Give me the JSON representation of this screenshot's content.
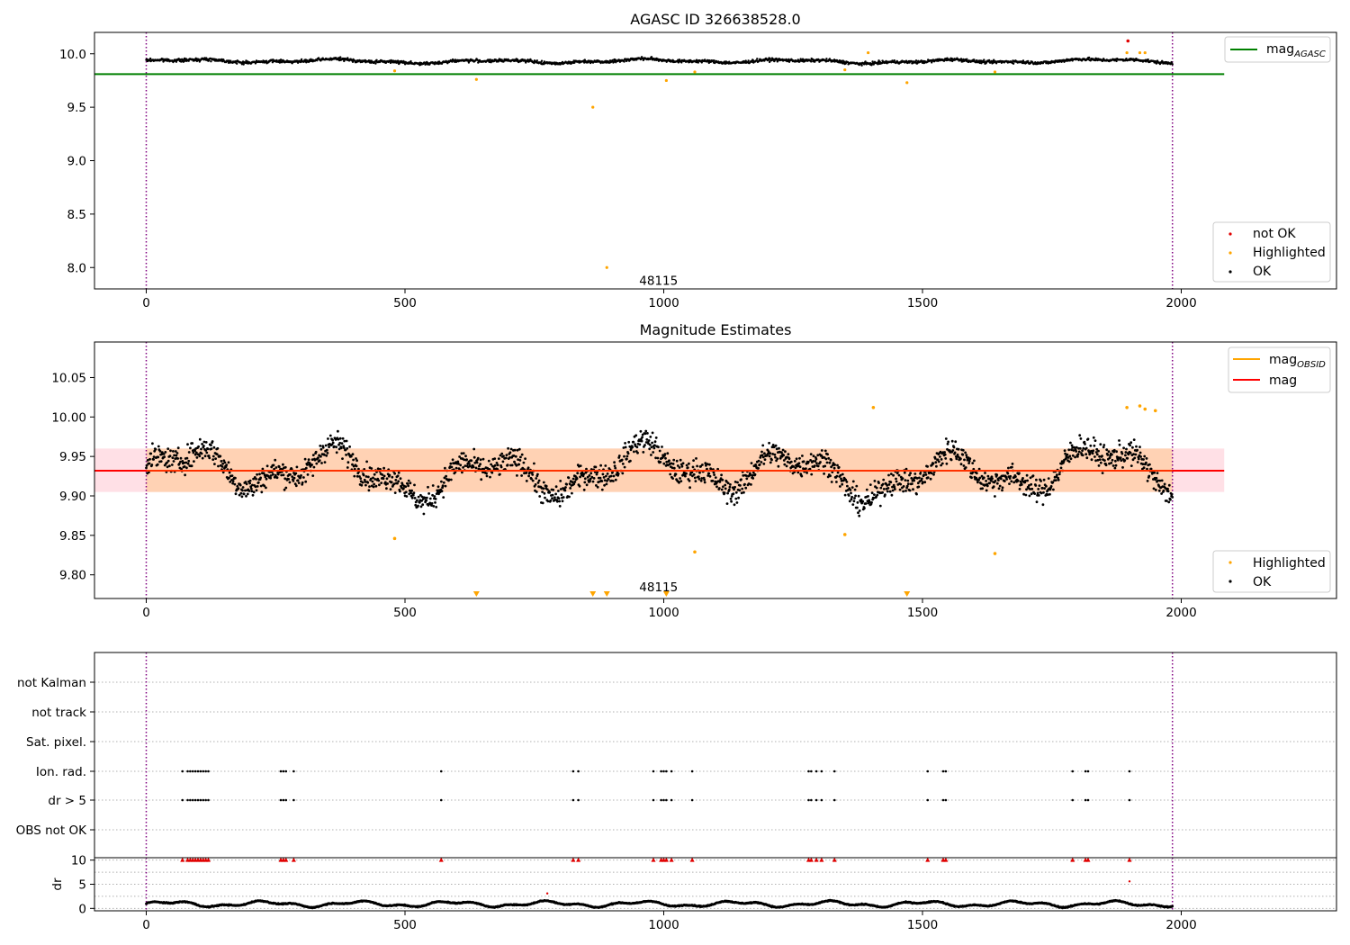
{
  "figure": {
    "colors": {
      "ok": "#000000",
      "not_ok": "#e00000",
      "highlighted": "#ffa500",
      "agasc_line": "#008000",
      "mag_line": "#ff0000",
      "obsid_line": "#ffa500",
      "band_inner": "#ffd2b4",
      "band_outer": "#ffe0e6",
      "obs_boundary": "#800080",
      "grid": "#b0b0b0"
    }
  },
  "chart_data": [
    {
      "type": "scatter",
      "title": "AGASC ID 326638528.0",
      "xlim": [
        -100,
        2300
      ],
      "ylim": [
        7.8,
        10.2
      ],
      "xticks": [
        "0",
        "500",
        "1000",
        "1500",
        "2000"
      ],
      "yticks": [
        "8.0",
        "8.5",
        "9.0",
        "9.5",
        "10.0"
      ],
      "xtick_values": [
        0,
        500,
        1000,
        1500,
        2000
      ],
      "ytick_values": [
        8.0,
        8.5,
        9.0,
        9.5,
        10.0
      ],
      "mag_agasc": 9.81,
      "mag_agasc_xrange": [
        -100,
        2083
      ],
      "obs_boundaries": [
        0,
        1983
      ],
      "obsid_label": "48115",
      "obsid_label_x": 990,
      "obsid_label_y": 7.88,
      "ok_series": {
        "name": "OK",
        "x_range": [
          0,
          1983
        ],
        "count": 1983,
        "median": 9.93
      },
      "highlighted_points": [
        {
          "x": 480,
          "y": 9.84
        },
        {
          "x": 638,
          "y": 9.76
        },
        {
          "x": 863,
          "y": 9.5
        },
        {
          "x": 890,
          "y": 8.0
        },
        {
          "x": 1005,
          "y": 9.75
        },
        {
          "x": 1060,
          "y": 9.83
        },
        {
          "x": 1350,
          "y": 9.85
        },
        {
          "x": 1395,
          "y": 10.01
        },
        {
          "x": 1470,
          "y": 9.73
        },
        {
          "x": 1640,
          "y": 9.83
        },
        {
          "x": 1895,
          "y": 10.01
        },
        {
          "x": 1920,
          "y": 10.01
        },
        {
          "x": 1930,
          "y": 10.01
        }
      ],
      "not_ok_points": [
        {
          "x": 1897,
          "y": 10.12
        }
      ],
      "legend_top": [
        {
          "label_main": "mag",
          "label_sub": "AGASC",
          "marker": "line",
          "color_key": "agasc_line"
        }
      ],
      "legend_bottom": [
        {
          "label": "not OK",
          "marker": "dot",
          "color_key": "not_ok"
        },
        {
          "label": "Highlighted",
          "marker": "dot",
          "color_key": "highlighted"
        },
        {
          "label": "OK",
          "marker": "dot",
          "color_key": "ok"
        }
      ]
    },
    {
      "type": "scatter",
      "title": "Magnitude Estimates",
      "xlim": [
        -100,
        2300
      ],
      "ylim": [
        9.77,
        10.095
      ],
      "xticks": [
        "0",
        "500",
        "1000",
        "1500",
        "2000"
      ],
      "yticks": [
        "9.80",
        "9.85",
        "9.90",
        "9.95",
        "10.00",
        "10.05"
      ],
      "xtick_values": [
        0,
        500,
        1000,
        1500,
        2000
      ],
      "ytick_values": [
        9.8,
        9.85,
        9.9,
        9.95,
        10.0,
        10.05
      ],
      "mag": 9.932,
      "mag_xrange": [
        -100,
        2083
      ],
      "band_outer": [
        9.905,
        9.96
      ],
      "band_inner": [
        9.905,
        9.96
      ],
      "band_inner_xrange": [
        0,
        1983
      ],
      "obs_boundaries": [
        0,
        1983
      ],
      "obsid_label": "48115",
      "obsid_label_x": 990,
      "ok_series": {
        "name": "OK",
        "x_range": [
          0,
          1983
        ],
        "count": 1983,
        "median": 9.93
      },
      "highlighted_points": [
        {
          "x": 480,
          "y": 9.846
        },
        {
          "x": 1060,
          "y": 9.829
        },
        {
          "x": 1350,
          "y": 9.851
        },
        {
          "x": 1405,
          "y": 10.012
        },
        {
          "x": 1640,
          "y": 9.827
        },
        {
          "x": 1895,
          "y": 10.012
        },
        {
          "x": 1920,
          "y": 10.014
        },
        {
          "x": 1930,
          "y": 10.01
        },
        {
          "x": 1950,
          "y": 10.008
        }
      ],
      "offscale_markers_x": [
        638,
        863,
        890,
        1005,
        1470
      ],
      "legend_top": [
        {
          "label_main": "mag",
          "label_sub": "OBSID",
          "marker": "line",
          "color_key": "obsid_line"
        },
        {
          "label_main": "mag",
          "label_sub": "",
          "marker": "line",
          "color_key": "mag_line"
        }
      ],
      "legend_bottom": [
        {
          "label": "Highlighted",
          "marker": "dot",
          "color_key": "highlighted"
        },
        {
          "label": "OK",
          "marker": "dot",
          "color_key": "ok"
        }
      ]
    },
    {
      "type": "scatter",
      "title": "",
      "xlim": [
        -100,
        2300
      ],
      "xticks": [
        "0",
        "500",
        "1000",
        "1500",
        "2000"
      ],
      "xtick_values": [
        0,
        500,
        1000,
        1500,
        2000
      ],
      "obs_boundaries": [
        0,
        1983
      ],
      "flag_rows": [
        "not Kalman",
        "not track",
        "Sat. pixel.",
        "Ion. rad.",
        "dr > 5",
        "OBS not OK"
      ],
      "flag_row_colors": [
        "#000000",
        "#000000",
        "#000000",
        "#000000",
        "#000000",
        "#000000"
      ],
      "flag_times": [
        70,
        80,
        85,
        90,
        95,
        100,
        105,
        110,
        115,
        120,
        260,
        265,
        270,
        285,
        570,
        825,
        835,
        980,
        995,
        1000,
        1005,
        1015,
        1055,
        1280,
        1285,
        1295,
        1305,
        1330,
        1510,
        1540,
        1545,
        1790,
        1815,
        1820,
        1900
      ],
      "flags_present_rows": [
        "Ion. rad.",
        "dr > 5"
      ],
      "dr_ylabel": "dr",
      "dr_yticks": [
        "0",
        "5",
        "10"
      ],
      "dr_ytick_values": [
        0,
        5,
        10
      ],
      "dr_ylim": [
        -0.5,
        10.5
      ],
      "dr_ok_series": {
        "name": "OK",
        "x_range": [
          0,
          1983
        ],
        "count": 1983,
        "median": 0.9
      },
      "dr_clipped_marker_value": 10,
      "dr_outliers": [
        {
          "x": 775,
          "y": 3.1
        },
        {
          "x": 1900,
          "y": 5.6
        }
      ]
    }
  ]
}
